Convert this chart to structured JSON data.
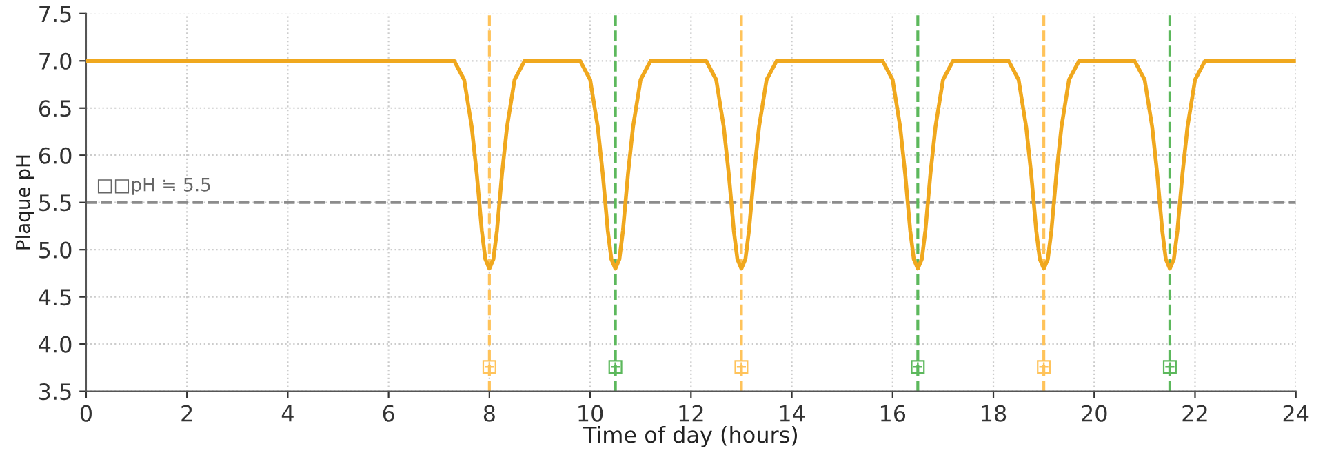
{
  "chart_data": {
    "type": "line",
    "xlabel": "Time of day (hours)",
    "ylabel": "Plaque pH",
    "series": [
      {
        "color": "#f0a81e",
        "x": [
          0,
          7.3,
          7.5,
          7.65,
          7.75,
          7.85,
          7.92,
          8,
          8.08,
          8.15,
          8.25,
          8.35,
          8.5,
          8.7,
          9.8,
          10,
          10.15,
          10.25,
          10.35,
          10.42,
          10.5,
          10.58,
          10.65,
          10.75,
          10.85,
          11,
          11.2,
          12.3,
          12.5,
          12.65,
          12.75,
          12.85,
          12.92,
          13,
          13.08,
          13.15,
          13.25,
          13.35,
          13.5,
          13.7,
          15.8,
          16,
          16.15,
          16.25,
          16.35,
          16.42,
          16.5,
          16.58,
          16.65,
          16.75,
          16.85,
          17,
          17.2,
          18.3,
          18.5,
          18.65,
          18.75,
          18.85,
          18.92,
          19,
          19.08,
          19.15,
          19.25,
          19.35,
          19.5,
          19.7,
          20.8,
          21,
          21.15,
          21.25,
          21.35,
          21.42,
          21.5,
          21.58,
          21.65,
          21.75,
          21.85,
          22,
          22.2,
          24
        ],
        "values": [
          7.0,
          7.0,
          6.8,
          6.3,
          5.8,
          5.2,
          4.9,
          4.8,
          4.9,
          5.2,
          5.8,
          6.3,
          6.8,
          7.0,
          7.0,
          6.8,
          6.3,
          5.8,
          5.2,
          4.9,
          4.8,
          4.9,
          5.2,
          5.8,
          6.3,
          6.8,
          7.0,
          7.0,
          6.8,
          6.3,
          5.8,
          5.2,
          4.9,
          4.8,
          4.9,
          5.2,
          5.8,
          6.3,
          6.8,
          7.0,
          7.0,
          6.8,
          6.3,
          5.8,
          5.2,
          4.9,
          4.8,
          4.9,
          5.2,
          5.8,
          6.3,
          6.8,
          7.0,
          7.0,
          6.8,
          6.3,
          5.8,
          5.2,
          4.9,
          4.8,
          4.9,
          5.2,
          5.8,
          6.3,
          6.8,
          7.0,
          7.0,
          6.8,
          6.3,
          5.8,
          5.2,
          4.9,
          4.8,
          4.9,
          5.2,
          5.8,
          6.3,
          6.8,
          7.0,
          7.0
        ]
      }
    ],
    "xlim": [
      0,
      24
    ],
    "xticks": [
      0,
      2,
      4,
      6,
      8,
      10,
      12,
      14,
      16,
      18,
      20,
      22,
      24
    ],
    "ylim": [
      3.5,
      7.5
    ],
    "yticks": [
      {
        "value": 3.5,
        "label": "3.5"
      },
      {
        "value": 4,
        "label": "4.0"
      },
      {
        "value": 4.5,
        "label": "4.5"
      },
      {
        "value": 5,
        "label": "5.0"
      },
      {
        "value": 5.5,
        "label": "5.5"
      },
      {
        "value": 6,
        "label": "6.0"
      },
      {
        "value": 6.5,
        "label": "6.5"
      },
      {
        "value": 7,
        "label": "7.0"
      },
      {
        "value": 7.5,
        "label": "7.5"
      }
    ],
    "ref_lines": [
      {
        "axis": "y",
        "value": 5.5,
        "label": "□□pH ≒ 5.5",
        "color": "#8c8c8c",
        "line_style": "dashed"
      },
      {
        "axis": "x",
        "value": 8,
        "label": "⊞",
        "color": "#ffc35a",
        "line_style": "dashed"
      },
      {
        "axis": "x",
        "value": 10.5,
        "label": "⊞",
        "color": "#5cb85c",
        "line_style": "dashed"
      },
      {
        "axis": "x",
        "value": 13,
        "label": "⊞",
        "color": "#ffc35a",
        "line_style": "dashed"
      },
      {
        "axis": "x",
        "value": 16.5,
        "label": "⊞",
        "color": "#5cb85c",
        "line_style": "dashed"
      },
      {
        "axis": "x",
        "value": 19,
        "label": "⊞",
        "color": "#ffc35a",
        "line_style": "dashed"
      },
      {
        "axis": "x",
        "value": 21.5,
        "label": "⊞",
        "color": "#5cb85c",
        "line_style": "dashed"
      }
    ],
    "grid": true
  }
}
